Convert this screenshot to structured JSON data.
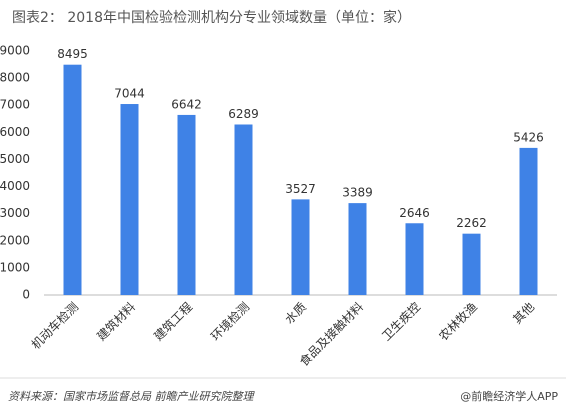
{
  "chart_data": {
    "type": "bar",
    "title": "图表2： 2018年中国检验检测机构分专业领域数量（单位：家）",
    "categories": [
      "机动车检测",
      "建筑材料",
      "建筑工程",
      "环境检测",
      "水质",
      "食品及接触材料",
      "卫生疾控",
      "农林牧渔",
      "其他"
    ],
    "values": [
      8495,
      7044,
      6642,
      6289,
      3527,
      3389,
      2646,
      2262,
      5426
    ],
    "color": "#3f82e6",
    "ylim": [
      0,
      9000
    ],
    "yticks": [
      0,
      1000,
      2000,
      3000,
      4000,
      5000,
      6000,
      7000,
      8000,
      9000
    ],
    "grid": false,
    "source": "资料来源：国家市场监督总局 前瞻产业研究院整理",
    "brand": "@前瞻经济学人APP"
  }
}
